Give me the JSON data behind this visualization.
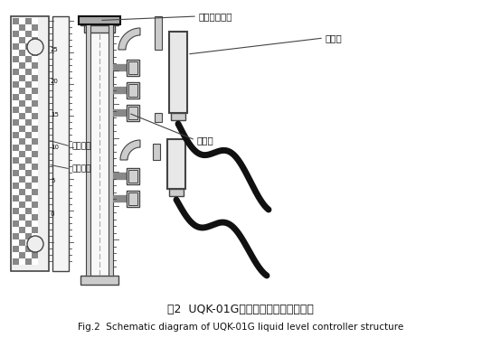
{
  "title_cn": "图2  UQK-01G液位控制器的结构原理图",
  "title_en": "Fig.2  Schematic diagram of UQK-01G liquid level controller structure",
  "bg_color": "#ffffff",
  "label_fuzi": "浮子（磁钢）",
  "label_jiexianhe": "接线盒",
  "label_ganjieguan": "干簧管",
  "label_yishang": "以上白色",
  "label_yixia": "以下红色",
  "line_color": "#444444",
  "dark_color": "#111111",
  "gray_color": "#999999",
  "light_gray": "#cccccc",
  "med_gray": "#888888",
  "dark_gray": "#555555"
}
